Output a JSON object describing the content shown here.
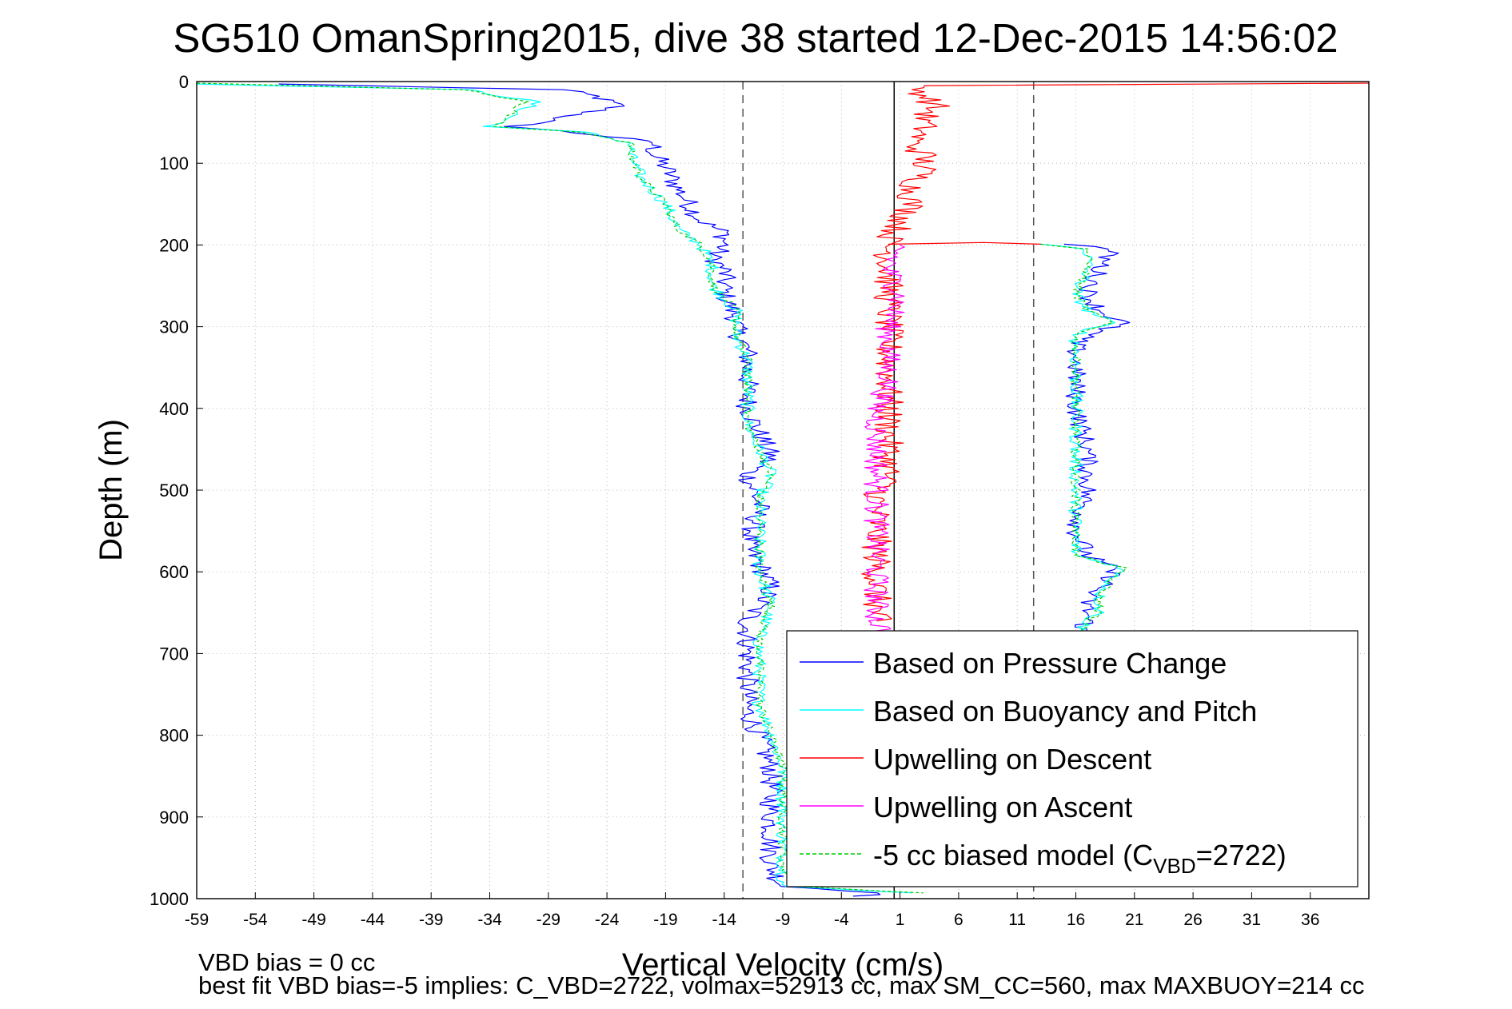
{
  "chart_data": {
    "type": "line",
    "title": "SG510 OmanSpring2015, dive 38 started 12-Dec-2015 14:56:02",
    "xlabel": "Vertical Velocity (cm/s)",
    "ylabel": "Depth (m)",
    "xlim": [
      -59,
      41
    ],
    "ylim": [
      0,
      1000
    ],
    "y_reversed": true,
    "grid": "dotted",
    "x_ticks": [
      "-59",
      "-54",
      "-49",
      "-44",
      "-39",
      "-34",
      "-29",
      "-24",
      "-19",
      "-14",
      "-9",
      "-4",
      "1",
      "6",
      "11",
      "16",
      "21",
      "26",
      "31",
      "36"
    ],
    "y_ticks": [
      "0",
      "100",
      "200",
      "300",
      "400",
      "500",
      "600",
      "700",
      "800",
      "900",
      "1000"
    ],
    "reference_lines": [
      {
        "style": "solid",
        "color": "#000000",
        "x": 0.5
      },
      {
        "style": "dashed",
        "color": "#555555",
        "x": -12.4
      },
      {
        "style": "dashed",
        "color": "#555555",
        "x": 12.4
      }
    ],
    "legend": {
      "position": "bottom-right",
      "entries": [
        {
          "label": "Based on Pressure Change",
          "color": "#0000ff",
          "dash": "solid"
        },
        {
          "label": "Based on Buoyancy and Pitch",
          "color": "#00ffff",
          "dash": "solid"
        },
        {
          "label": "Upwelling on Descent",
          "color": "#ff0000",
          "dash": "solid"
        },
        {
          "label": "Upwelling on Ascent",
          "color": "#ff00ff",
          "dash": "solid"
        },
        {
          "label": "-5 cc biased model (C",
          "sub": "VBD",
          "suffix": "=2722)",
          "color": "#00cc00",
          "dash": "dashed"
        }
      ]
    },
    "series": [
      {
        "name": "Based on Pressure Change",
        "color": "#0000ff",
        "noise": 1.0,
        "points": [
          [
            -52,
            3
          ],
          [
            -28,
            10
          ],
          [
            -25,
            18
          ],
          [
            -23,
            30
          ],
          [
            -28,
            45
          ],
          [
            -32,
            55
          ],
          [
            -25,
            65
          ],
          [
            -20,
            75
          ],
          [
            -20,
            90
          ],
          [
            -19,
            105
          ],
          [
            -18,
            130
          ],
          [
            -17,
            150
          ],
          [
            -16,
            170
          ],
          [
            -14,
            185
          ],
          [
            -14,
            200
          ],
          [
            -15,
            215
          ],
          [
            -14,
            230
          ],
          [
            -14,
            260
          ],
          [
            -13,
            290
          ],
          [
            -13,
            305
          ],
          [
            -12,
            330
          ],
          [
            -12,
            370
          ],
          [
            -12,
            400
          ],
          [
            -11,
            430
          ],
          [
            -10,
            460
          ],
          [
            -12,
            480
          ],
          [
            -11,
            520
          ],
          [
            -12,
            570
          ],
          [
            -11,
            590
          ],
          [
            -10,
            620
          ],
          [
            -12,
            660
          ],
          [
            -12,
            700
          ],
          [
            -12,
            740
          ],
          [
            -12,
            770
          ],
          [
            -11,
            800
          ],
          [
            -10,
            840
          ],
          [
            -10,
            880
          ],
          [
            -10,
            920
          ],
          [
            -10,
            960
          ],
          [
            -9,
            985
          ],
          [
            0,
            993
          ],
          [
            -3,
            997
          ]
        ]
      },
      {
        "name": "Based on Buoyancy and Pitch",
        "color": "#00ffff",
        "noise": 0.6,
        "points": [
          [
            -59,
            3
          ],
          [
            -36,
            10
          ],
          [
            -30,
            25
          ],
          [
            -33,
            50
          ],
          [
            -34,
            55
          ],
          [
            -26,
            62
          ],
          [
            -22,
            75
          ],
          [
            -22,
            90
          ],
          [
            -21,
            120
          ],
          [
            -19,
            150
          ],
          [
            -18,
            180
          ],
          [
            -16,
            200
          ],
          [
            -15,
            225
          ],
          [
            -15,
            250
          ],
          [
            -13,
            280
          ],
          [
            -13,
            310
          ],
          [
            -12,
            340
          ],
          [
            -12,
            380
          ],
          [
            -12,
            420
          ],
          [
            -11,
            450
          ],
          [
            -10,
            480
          ],
          [
            -11,
            510
          ],
          [
            -11,
            560
          ],
          [
            -11,
            600
          ],
          [
            -10,
            640
          ],
          [
            -11,
            680
          ],
          [
            -11,
            720
          ],
          [
            -11,
            760
          ],
          [
            -10,
            800
          ],
          [
            -9,
            840
          ],
          [
            -9,
            880
          ],
          [
            -9,
            920
          ],
          [
            -9,
            960
          ],
          [
            -9,
            985
          ],
          [
            2,
            993
          ]
        ]
      },
      {
        "name": "-5 cc biased model (C_VBD=2722)",
        "color": "#00cc00",
        "dash": "4,3",
        "noise": 0.4,
        "points": [
          [
            -59,
            2
          ],
          [
            -36,
            10
          ],
          [
            -31,
            25
          ],
          [
            -33,
            50
          ],
          [
            -34,
            55
          ],
          [
            -26,
            62
          ],
          [
            -22,
            75
          ],
          [
            -22,
            90
          ],
          [
            -21,
            120
          ],
          [
            -19,
            150
          ],
          [
            -18,
            180
          ],
          [
            -16,
            200
          ],
          [
            -15,
            225
          ],
          [
            -15,
            250
          ],
          [
            -13,
            280
          ],
          [
            -13,
            310
          ],
          [
            -12,
            340
          ],
          [
            -12,
            380
          ],
          [
            -12,
            420
          ],
          [
            -11,
            450
          ],
          [
            -10,
            480
          ],
          [
            -11,
            510
          ],
          [
            -11,
            560
          ],
          [
            -11,
            600
          ],
          [
            -10,
            640
          ],
          [
            -11,
            680
          ],
          [
            -11,
            720
          ],
          [
            -11,
            760
          ],
          [
            -10,
            800
          ],
          [
            -9,
            840
          ],
          [
            -9,
            880
          ],
          [
            -9,
            920
          ],
          [
            -9,
            960
          ],
          [
            -8,
            985
          ],
          [
            3,
            993
          ]
        ]
      },
      {
        "name": "Upwelling on Descent",
        "color": "#ff0000",
        "noise": 1.3,
        "points": [
          [
            41,
            2
          ],
          [
            2,
            5
          ],
          [
            3,
            15
          ],
          [
            4,
            30
          ],
          [
            3,
            45
          ],
          [
            3,
            60
          ],
          [
            2,
            75
          ],
          [
            3,
            90
          ],
          [
            3,
            110
          ],
          [
            2,
            130
          ],
          [
            2,
            150
          ],
          [
            1,
            175
          ],
          [
            0,
            195
          ],
          [
            0,
            210
          ],
          [
            0,
            240
          ],
          [
            0,
            270
          ],
          [
            0,
            300
          ],
          [
            0,
            330
          ],
          [
            0,
            360
          ],
          [
            0,
            390
          ],
          [
            0,
            420
          ],
          [
            0,
            450
          ],
          [
            0,
            480
          ],
          [
            -1,
            510
          ],
          [
            -1,
            540
          ],
          [
            -1,
            570
          ],
          [
            -1,
            600
          ],
          [
            -1,
            630
          ],
          [
            -1,
            660
          ]
        ]
      },
      {
        "name": "Upwelling on Descent (ascent side)",
        "color": "#ff0000",
        "noise": 0.3,
        "points": [
          [
            0,
            199
          ],
          [
            4,
            198
          ],
          [
            8,
            197
          ],
          [
            13,
            199
          ]
        ]
      },
      {
        "name": "Upwelling on Ascent",
        "color": "#ff00ff",
        "noise": 1.1,
        "points": [
          [
            1,
            200
          ],
          [
            0,
            230
          ],
          [
            1,
            260
          ],
          [
            0,
            300
          ],
          [
            0,
            330
          ],
          [
            0,
            350
          ],
          [
            0,
            370
          ],
          [
            -1,
            400
          ],
          [
            -1,
            600
          ],
          [
            -1,
            630
          ],
          [
            -1,
            660
          ],
          [
            0,
            680
          ]
        ]
      },
      {
        "name": "Based on Pressure Change (ascent)",
        "color": "#0000ff",
        "noise": 0.9,
        "points": [
          [
            15,
            199
          ],
          [
            19,
            205
          ],
          [
            18,
            230
          ],
          [
            17,
            260
          ],
          [
            18,
            280
          ],
          [
            20,
            295
          ],
          [
            17,
            310
          ],
          [
            16,
            320
          ],
          [
            16,
            350
          ],
          [
            16,
            400
          ],
          [
            17,
            450
          ],
          [
            17,
            500
          ],
          [
            16,
            550
          ],
          [
            17,
            580
          ],
          [
            19,
            595
          ],
          [
            19,
            610
          ],
          [
            17,
            630
          ],
          [
            17,
            650
          ],
          [
            17,
            660
          ],
          [
            16,
            680
          ]
        ]
      },
      {
        "name": "Based on Buoyancy and Pitch (ascent)",
        "color": "#00ffff",
        "noise": 0.6,
        "points": [
          [
            13,
            199
          ],
          [
            17,
            205
          ],
          [
            17,
            230
          ],
          [
            16,
            260
          ],
          [
            17,
            280
          ],
          [
            19,
            295
          ],
          [
            16,
            310
          ],
          [
            16,
            320
          ],
          [
            16,
            350
          ],
          [
            16,
            400
          ],
          [
            16,
            450
          ],
          [
            16,
            500
          ],
          [
            16,
            550
          ],
          [
            16,
            580
          ],
          [
            20,
            595
          ],
          [
            19,
            610
          ],
          [
            18,
            630
          ],
          [
            18,
            650
          ],
          [
            17,
            660
          ],
          [
            16,
            680
          ]
        ]
      },
      {
        "name": "biased model (ascent)",
        "color": "#00cc00",
        "dash": "4,3",
        "noise": 0.4,
        "points": [
          [
            13,
            199
          ],
          [
            17,
            205
          ],
          [
            17,
            230
          ],
          [
            16,
            260
          ],
          [
            17,
            280
          ],
          [
            19,
            295
          ],
          [
            16,
            310
          ],
          [
            16,
            320
          ],
          [
            16,
            350
          ],
          [
            16,
            400
          ],
          [
            16,
            450
          ],
          [
            16,
            500
          ],
          [
            16,
            550
          ],
          [
            16,
            580
          ],
          [
            20,
            595
          ],
          [
            19,
            610
          ],
          [
            18,
            630
          ],
          [
            18,
            650
          ],
          [
            17,
            660
          ],
          [
            16,
            680
          ]
        ]
      }
    ]
  },
  "footer": {
    "line1": "VBD bias = 0 cc",
    "line2": "best fit VBD bias=-5 implies: C_VBD=2722, volmax=52913 cc, max SM_CC=560, max MAXBUOY=214 cc"
  }
}
